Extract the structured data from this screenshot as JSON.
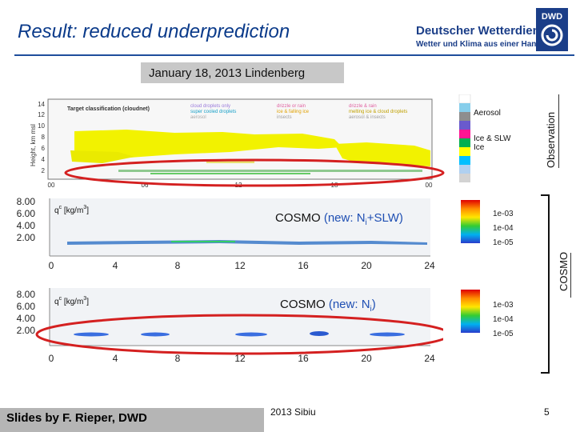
{
  "slide": {
    "title": "Result: reduced underprediction",
    "date_location": "January 18, 2013 Lindenberg",
    "footer": "Slides by F. Rieper, DWD",
    "footer_mid": "2013 Sibiu",
    "page": "5"
  },
  "brand": {
    "name": "Deutscher Wetterdienst",
    "tagline": "Wetter und Klima aus einer Hand",
    "logo_text": "DWD",
    "color": "#1b3e88"
  },
  "observation": {
    "side_label": "Observation",
    "panel_title": "Target classification (cloudnet)",
    "ylabel": "Height, km msl",
    "y_ticks": [
      "14",
      "12",
      "10",
      "8",
      "6",
      "4",
      "2"
    ],
    "x_ticks": [
      "00",
      "06",
      "12",
      "18",
      "00"
    ],
    "legend_cols": [
      [
        "cloud droplets only",
        "super cooled droplets",
        "aerosol"
      ],
      [
        "drizzle or rain",
        "ice & falling ice",
        "insects"
      ],
      [
        "drizzle & rain",
        "melting ice & cloud droplets",
        "aerosol & insects"
      ]
    ],
    "legend": {
      "aerosol": "Aerosol",
      "ice_slw": "Ice & SLW",
      "ice": "Ice"
    },
    "colorbar": [
      "#ffffff",
      "#87ceeb",
      "#6a5acd",
      "#888888",
      "#ff1493",
      "#ff7f00",
      "#00b050",
      "#ffff00",
      "#00bfff",
      "#d3d3d3"
    ]
  },
  "cosmo": {
    "side_label": "COSMO",
    "panels": [
      {
        "ylabel": "q",
        "ylabel_sup": "c",
        "ylabel_unit": "[kg/m",
        "ylabel_unit_sup": "3",
        "ylabel_unit_close": "]",
        "y_ticks": [
          "8.00",
          "6.00",
          "4.00",
          "2.00"
        ],
        "x_ticks": [
          "0",
          "4",
          "8",
          "12",
          "16",
          "20",
          "24"
        ],
        "caption_prefix": "COSMO ",
        "caption_main": "(new: N",
        "caption_sub": "i",
        "caption_suffix": "+SLW)",
        "colorbar_labels": [
          "1e-03",
          "1e-04",
          "1e-05"
        ]
      },
      {
        "ylabel": "q",
        "ylabel_sup": "c",
        "ylabel_unit": "[kg/m",
        "ylabel_unit_sup": "3",
        "ylabel_unit_close": "]",
        "y_ticks": [
          "8.00",
          "6.00",
          "4.00",
          "2.00"
        ],
        "x_ticks": [
          "0",
          "4",
          "8",
          "12",
          "16",
          "20",
          "24"
        ],
        "caption_prefix": "COSMO ",
        "caption_main": "(new: N",
        "caption_sub": "i",
        "caption_suffix": ")",
        "colorbar_labels": [
          "1e-03",
          "1e-04",
          "1e-05"
        ]
      }
    ]
  },
  "highlight_color": "#d42020"
}
